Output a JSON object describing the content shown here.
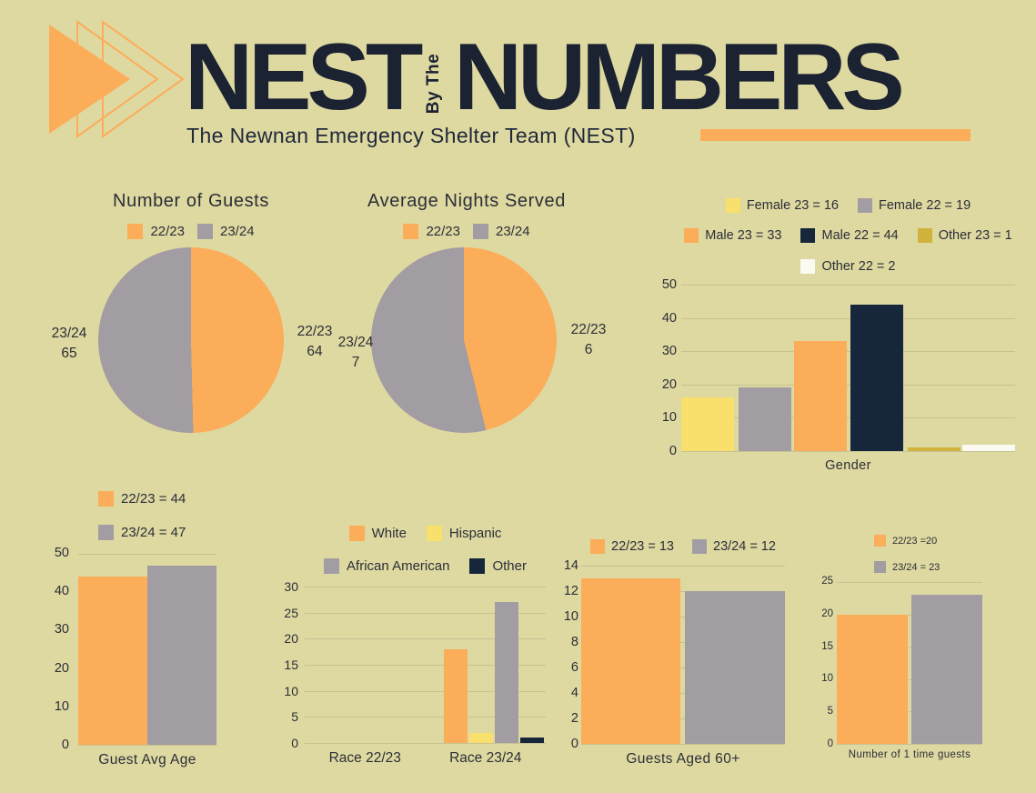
{
  "header": {
    "title_part1": "NEST",
    "title_connector": "By The",
    "title_part2": "NUMBERS",
    "subtitle": "The Newnan Emergency Shelter Team (NEST)"
  },
  "colors": {
    "background": "#ded8a1",
    "orange": "#fbad59",
    "gray": "#a29da2",
    "yellow": "#f9e06c",
    "navy": "#16263b",
    "gold": "#d1b23c",
    "white": "#fbfaf2",
    "title_text": "#1b2231",
    "chart_text": "#2c2f37",
    "gridline": "#c7c292"
  },
  "chart_data": [
    {
      "type": "pie",
      "title": "Number of Guests",
      "legend": [
        {
          "label": "22/23",
          "color": "#fbad59"
        },
        {
          "label": "23/24",
          "color": "#a29da2"
        }
      ],
      "slices": [
        {
          "label": "22/23",
          "value": 64,
          "color": "#fbad59"
        },
        {
          "label": "23/24",
          "value": 65,
          "color": "#a29da2"
        }
      ],
      "callout_right": {
        "line1": "22/23",
        "line2": "64"
      },
      "callout_left": {
        "line1": "23/24",
        "line2": "65"
      }
    },
    {
      "type": "pie",
      "title": "Average Nights Served",
      "legend": [
        {
          "label": "22/23",
          "color": "#fbad59"
        },
        {
          "label": "23/24",
          "color": "#a29da2"
        }
      ],
      "slices": [
        {
          "label": "22/23",
          "value": 6,
          "color": "#fbad59"
        },
        {
          "label": "23/24",
          "value": 7,
          "color": "#a29da2"
        }
      ],
      "callout_right": {
        "line1": "22/23",
        "line2": "6"
      },
      "callout_left": {
        "line1": "23/24",
        "line2": "7"
      }
    },
    {
      "type": "bar",
      "xlabel": "Gender",
      "ymax": 50,
      "yticks": [
        "50",
        "40",
        "30",
        "20",
        "10",
        "0"
      ],
      "legend_rows": [
        [
          {
            "label": "Female 23 = 16",
            "color": "#f9e06c"
          },
          {
            "label": "Female 22 = 19",
            "color": "#a29da2"
          }
        ],
        [
          {
            "label": "Male 23 = 33",
            "color": "#fbad59"
          },
          {
            "label": "Male 22 = 44",
            "color": "#16263b"
          },
          {
            "label": "Other 23 = 1",
            "color": "#d1b23c"
          }
        ],
        [
          {
            "label": "Other 22 = 2",
            "color": "#fbfaf2"
          }
        ]
      ],
      "bars": [
        {
          "name": "Female 23",
          "value": 16,
          "color": "#f9e06c"
        },
        {
          "name": "Female 22",
          "value": 19,
          "color": "#a29da2"
        },
        {
          "name": "Male 23",
          "value": 33,
          "color": "#fbad59"
        },
        {
          "name": "Male 22",
          "value": 44,
          "color": "#16263b"
        },
        {
          "name": "Other 23",
          "value": 1,
          "color": "#d1b23c"
        },
        {
          "name": "Other 22",
          "value": 2,
          "color": "#fbfaf2"
        }
      ]
    },
    {
      "type": "bar",
      "xlabel": "Guest Avg Age",
      "ymax": 50,
      "yticks": [
        "50",
        "40",
        "30",
        "20",
        "10",
        "0"
      ],
      "legend": [
        {
          "label": "22/23 = 44",
          "color": "#fbad59"
        },
        {
          "label": "23/24 = 47",
          "color": "#a29da2"
        }
      ],
      "bars": [
        {
          "name": "22/23",
          "value": 44,
          "color": "#fbad59"
        },
        {
          "name": "23/24",
          "value": 47,
          "color": "#a29da2"
        }
      ]
    },
    {
      "type": "grouped-bar",
      "ymax": 30,
      "yticks": [
        "30",
        "25",
        "20",
        "15",
        "10",
        "5",
        "0"
      ],
      "legend_rows": [
        [
          {
            "label": "White",
            "color": "#fbad59"
          },
          {
            "label": "Hispanic",
            "color": "#f9e06c"
          }
        ],
        [
          {
            "label": "African American",
            "color": "#a29da2"
          },
          {
            "label": "Other",
            "color": "#16263b"
          }
        ]
      ],
      "series": [
        "White",
        "Hispanic",
        "African American",
        "Other"
      ],
      "series_colors": [
        "#fbad59",
        "#f9e06c",
        "#a29da2",
        "#16263b"
      ],
      "groups": [
        {
          "label": "Race 22/23",
          "values": [
            0,
            0,
            0,
            0
          ]
        },
        {
          "label": "Race 23/24",
          "values": [
            18,
            2,
            27,
            1
          ]
        }
      ]
    },
    {
      "type": "bar",
      "xlabel": "Guests Aged 60+",
      "ymax": 14,
      "yticks": [
        "14",
        "12",
        "10",
        "8",
        "6",
        "4",
        "2",
        "0"
      ],
      "legend": [
        {
          "label": "22/23 = 13",
          "color": "#fbad59"
        },
        {
          "label": "23/24 = 12",
          "color": "#a29da2"
        }
      ],
      "bars": [
        {
          "name": "22/23",
          "value": 13,
          "color": "#fbad59"
        },
        {
          "name": "23/24",
          "value": 12,
          "color": "#a29da2"
        }
      ]
    },
    {
      "type": "bar",
      "xlabel": "Number of 1 time guests",
      "ymax": 25,
      "yticks": [
        "25",
        "20",
        "15",
        "10",
        "5",
        "0"
      ],
      "legend": [
        {
          "label": "22/23 =20",
          "color": "#fbad59"
        },
        {
          "label": "23/24 = 23",
          "color": "#a29da2"
        }
      ],
      "bars": [
        {
          "name": "22/23",
          "value": 20,
          "color": "#fbad59"
        },
        {
          "name": "23/24",
          "value": 23,
          "color": "#a29da2"
        }
      ]
    }
  ]
}
